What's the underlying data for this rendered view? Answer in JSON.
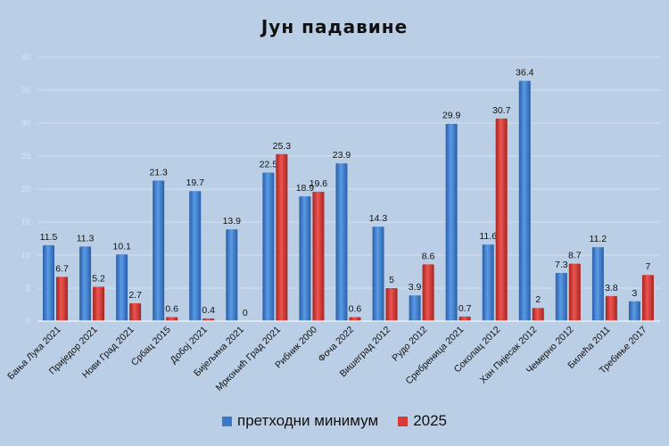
{
  "chart_data": {
    "type": "bar",
    "title": "Јун падавине",
    "xlabel": "",
    "ylabel": "",
    "ylim": [
      0,
      40
    ],
    "yticks": [
      "0",
      "5",
      "10",
      "15",
      "20",
      "25",
      "30",
      "35",
      "40"
    ],
    "grid": true,
    "legend_position": "bottom",
    "categories": [
      "Бања Лука 2021",
      "Приједор 2021",
      "Нови Град 2021",
      "Србац 2015",
      "Добој 2021",
      "Бијељина 2021",
      "Мркоњић Град 2021",
      "Рибник 2000",
      "Фоча 2022",
      "Вишеград 2012",
      "Рудо 2012",
      "Сребреница 2021",
      "Соколац 2012",
      "Хан Пијесак 2012",
      "Чемерно 2012",
      "Билећа 2011",
      "Требиње 2017"
    ],
    "series": [
      {
        "name": "претходни минимум",
        "color": "#3a78c9",
        "values": [
          11.5,
          11.3,
          10.1,
          21.3,
          19.7,
          13.9,
          22.5,
          18.9,
          23.9,
          14.3,
          3.9,
          29.9,
          11.6,
          36.4,
          7.3,
          11.2,
          3
        ]
      },
      {
        "name": "2025",
        "color": "#d93a34",
        "values": [
          6.7,
          5.2,
          2.7,
          0.6,
          0.4,
          0,
          25.3,
          19.6,
          0.6,
          5,
          8.6,
          0.7,
          30.7,
          2,
          8.7,
          3.8,
          7
        ]
      }
    ]
  }
}
